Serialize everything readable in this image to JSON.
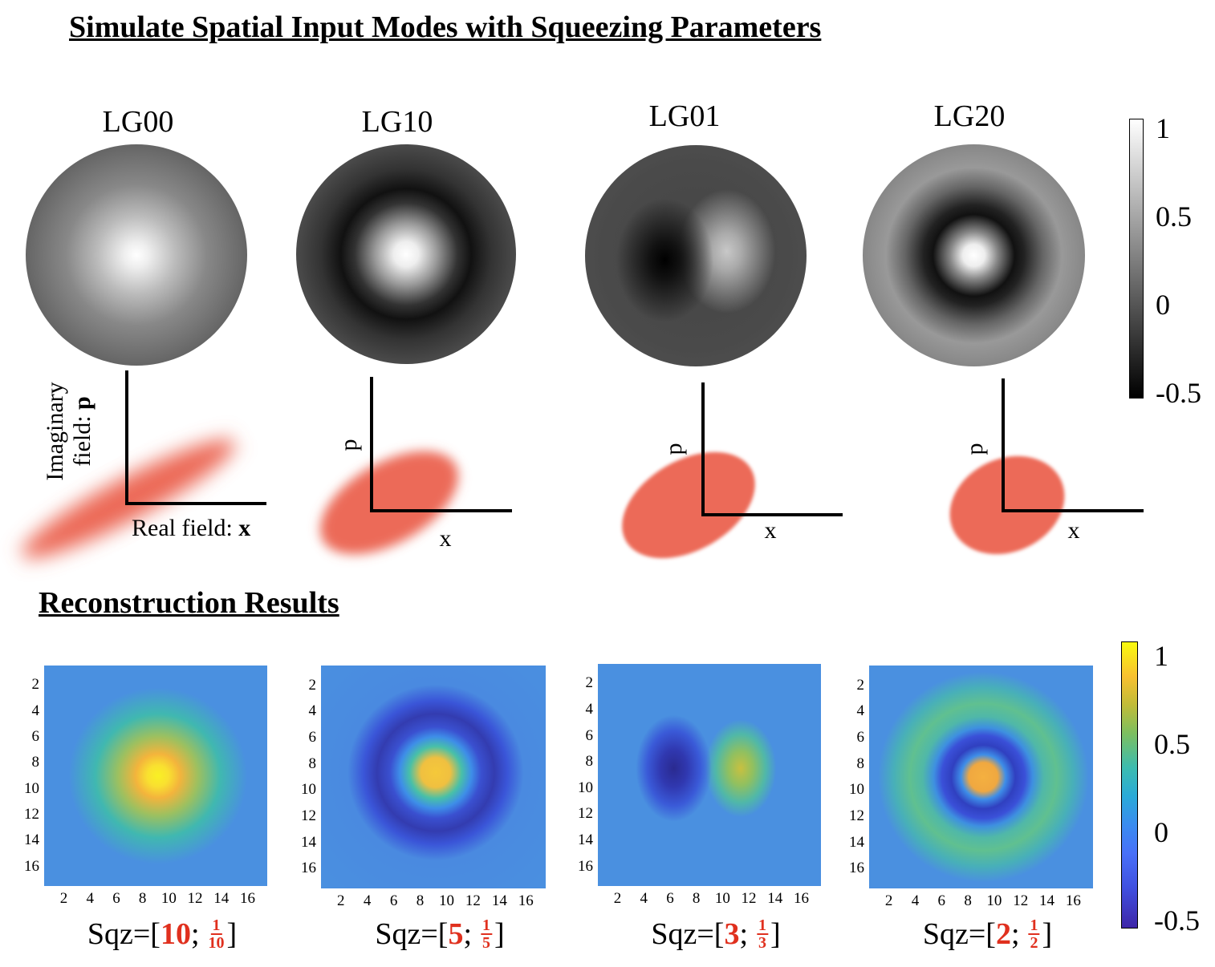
{
  "title": "Simulate Spatial Input Modes with Squeezing Parameters",
  "modes": [
    {
      "label": "LG00",
      "p_axis": {
        "text": "Imaginary",
        "text2": "field:",
        "var": "p"
      },
      "x_axis": {
        "text": "Real field:",
        "var": "x"
      }
    },
    {
      "label": "LG10",
      "p_axis": {
        "var": "p"
      },
      "x_axis": {
        "var": "x"
      }
    },
    {
      "label": "LG01",
      "p_axis": {
        "var": "p"
      },
      "x_axis": {
        "var": "x"
      }
    },
    {
      "label": "LG20",
      "p_axis": {
        "var": "p"
      },
      "x_axis": {
        "var": "x"
      }
    }
  ],
  "colorbar_top": {
    "labels": [
      "1",
      "0.5",
      "0",
      "-0.5"
    ]
  },
  "section_title": "Reconstruction Results",
  "reconstructions": [
    {
      "caption": {
        "prefix": "Sqz=[",
        "first": "10",
        "sep": ";",
        "num": "1",
        "den": "10",
        "suffix": "]"
      },
      "x_ticks": [
        "2",
        "4",
        "6",
        "8",
        "10",
        "12",
        "14",
        "16"
      ],
      "y_ticks": [
        "2",
        "4",
        "6",
        "8",
        "10",
        "12",
        "14",
        "16"
      ]
    },
    {
      "caption": {
        "prefix": "Sqz=[",
        "first": "5",
        "sep": ";",
        "num": "1",
        "den": "5",
        "suffix": "]"
      },
      "x_ticks": [
        "2",
        "4",
        "6",
        "8",
        "10",
        "12",
        "14",
        "16"
      ],
      "y_ticks": [
        "2",
        "4",
        "6",
        "8",
        "10",
        "12",
        "14",
        "16"
      ]
    },
    {
      "caption": {
        "prefix": "Sqz=[",
        "first": "3",
        "sep": ";",
        "num": "1",
        "den": "3",
        "suffix": "]"
      },
      "x_ticks": [
        "2",
        "4",
        "6",
        "8",
        "10",
        "12",
        "14",
        "16"
      ],
      "y_ticks": [
        "2",
        "4",
        "6",
        "8",
        "10",
        "12",
        "14",
        "16"
      ]
    },
    {
      "caption": {
        "prefix": "Sqz=[",
        "first": "2",
        "sep": ";",
        "num": "1",
        "den": "2",
        "suffix": "]"
      },
      "x_ticks": [
        "2",
        "4",
        "6",
        "8",
        "10",
        "12",
        "14",
        "16"
      ],
      "y_ticks": [
        "2",
        "4",
        "6",
        "8",
        "10",
        "12",
        "14",
        "16"
      ]
    }
  ],
  "colorbar_bottom": {
    "labels": [
      "1",
      "0.5",
      "0",
      "-0.5"
    ]
  }
}
